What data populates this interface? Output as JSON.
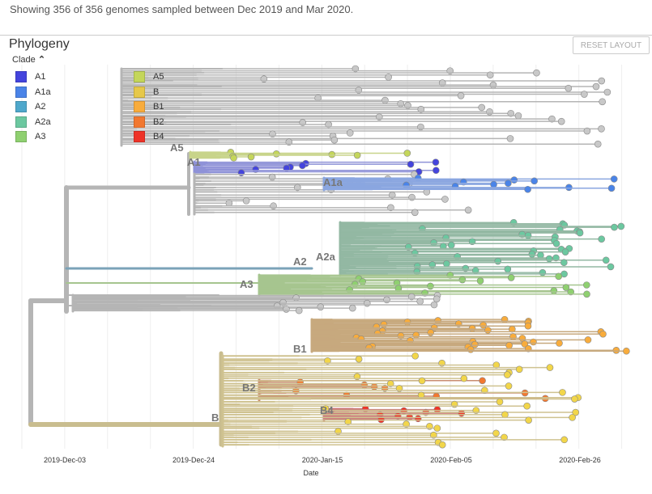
{
  "summary": "Showing 356 of 356 genomes sampled between Dec 2019 and Mar 2020.",
  "panel": {
    "title": "Phylogeny",
    "reset_label": "RESET LAYOUT"
  },
  "legend": {
    "title": "Clade",
    "toggle_icon": "chevron-up-icon",
    "items": [
      {
        "label": "A1",
        "color": "#4444dd"
      },
      {
        "label": "A1a",
        "color": "#4a84e8"
      },
      {
        "label": "A2",
        "color": "#4fa8cc"
      },
      {
        "label": "A2a",
        "color": "#6cc8a0"
      },
      {
        "label": "A3",
        "color": "#8fd070"
      },
      {
        "label": "A5",
        "color": "#c4d65a"
      },
      {
        "label": "B",
        "color": "#e6c84a"
      },
      {
        "label": "B1",
        "color": "#f8ac3c"
      },
      {
        "label": "B2",
        "color": "#f27830"
      },
      {
        "label": "B4",
        "color": "#ee3328"
      }
    ]
  },
  "axis": {
    "ticks": [
      "2019-Dec-03",
      "2019-Dec-24",
      "2020-Jan-15",
      "2020-Feb-05",
      "2020-Feb-26"
    ],
    "label": "Date"
  },
  "clade_labels": {
    "A5": "A5",
    "A1": "A1",
    "A1a": "A1a",
    "A2": "A2",
    "A2a": "A2a",
    "A3": "A3",
    "B1": "B1",
    "B2": "B2",
    "B4": "B4",
    "B": "B"
  }
}
